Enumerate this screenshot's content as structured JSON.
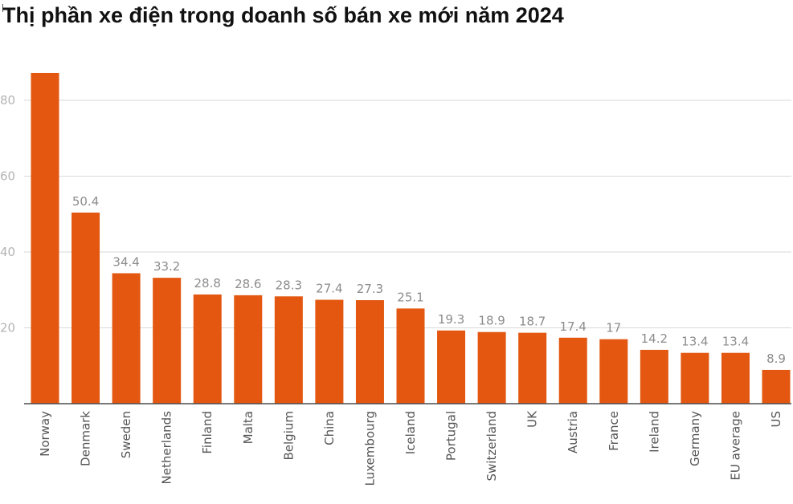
{
  "title": "Thị phần xe điện trong doanh số bán xe mới năm 2024",
  "colors": {
    "bar": "#e35710",
    "grid": "#d9d9d9",
    "axis": "#4d4d4d"
  },
  "chart_data": {
    "type": "bar",
    "title": "Thị phần xe điện trong doanh số bán xe mới năm 2024",
    "xlabel": "",
    "ylabel": "",
    "ylim": [
      0,
      90
    ],
    "yticks": [
      20,
      40,
      60,
      80
    ],
    "ytick_labels": [
      "20",
      "40",
      "60",
      "80"
    ],
    "grid": true,
    "categories": [
      "Norway",
      "Denmark",
      "Sweden",
      "Netherlands",
      "Finland",
      "Malta",
      "Belgium",
      "China",
      "Luxembourg",
      "Iceland",
      "Portugal",
      "Switzerland",
      "UK",
      "Austria",
      "France",
      "Ireland",
      "Germany",
      "EU average",
      "US"
    ],
    "values": [
      87.2,
      50.4,
      34.4,
      33.2,
      28.8,
      28.6,
      28.3,
      27.4,
      27.3,
      25.1,
      19.3,
      18.9,
      18.7,
      17.4,
      17,
      14.2,
      13.4,
      13.4,
      8.9
    ],
    "data_labels": [
      "",
      "50.4",
      "34.4",
      "33.2",
      "28.8",
      "28.6",
      "28.3",
      "27.4",
      "27.3",
      "25.1",
      "19.3",
      "18.9",
      "18.7",
      "17.4",
      "17",
      "14.2",
      "13.4",
      "13.4",
      "8.9"
    ]
  }
}
